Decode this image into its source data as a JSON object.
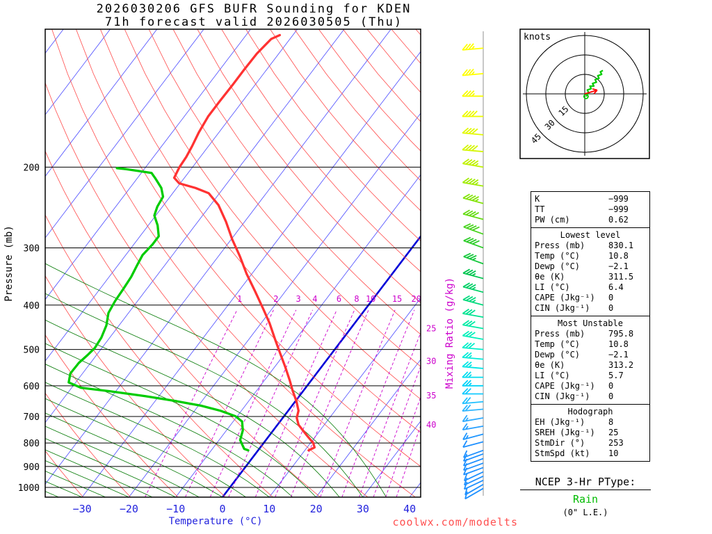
{
  "header": {
    "title": "2026030206 GFS BUFR Sounding for KDEN",
    "subtitle": "71h forecast valid 2026030505 (Thu)"
  },
  "watermark": {
    "text": "coolwx.com/modelts",
    "color": "#FF5050"
  },
  "ptype": {
    "title": "NCEP 3-Hr PType:",
    "value": "Rain",
    "value_color": "#00BB00",
    "liquid_equivalent": "(0\" L.E.)"
  },
  "stats": {
    "boxes": [
      {
        "title": "",
        "rows": [
          [
            "K",
            "−999"
          ],
          [
            "TT",
            "−999"
          ],
          [
            "PW (cm)",
            "0.62"
          ]
        ]
      },
      {
        "title": "Lowest level",
        "rows": [
          [
            "Press (mb)",
            "830.1"
          ],
          [
            "Temp (°C)",
            "10.8"
          ],
          [
            "Dewp (°C)",
            "−2.1"
          ],
          [
            "θe (K)",
            "311.5"
          ],
          [
            "LI (°C)",
            "6.4"
          ],
          [
            "CAPE (Jkg⁻¹)",
            "0"
          ],
          [
            "CIN (Jkg⁻¹)",
            "0"
          ]
        ]
      },
      {
        "title": "Most Unstable",
        "rows": [
          [
            "Press (mb)",
            "795.8"
          ],
          [
            "Temp (°C)",
            "10.8"
          ],
          [
            "Dewp (°C)",
            "−2.1"
          ],
          [
            "θe (K)",
            "313.2"
          ],
          [
            "LI (°C)",
            "5.7"
          ],
          [
            "CAPE (Jkg⁻¹)",
            "0"
          ],
          [
            "CIN (Jkg⁻¹)",
            "0"
          ]
        ]
      },
      {
        "title": "Hodograph",
        "rows": [
          [
            "EH (Jkg⁻¹)",
            "8"
          ],
          [
            "SREH (Jkg⁻¹)",
            "25"
          ],
          [
            "StmDir (°)",
            "253"
          ],
          [
            "StmSpd (kt)",
            "10"
          ]
        ]
      }
    ]
  },
  "chart_data": {
    "type": "skewt-log-p-sounding",
    "station": "KDEN",
    "pressure_axis": {
      "label": "Pressure (mb)",
      "ticks": [
        200,
        300,
        400,
        500,
        600,
        700,
        800,
        900,
        1000
      ],
      "range_mb": [
        100,
        1050
      ]
    },
    "temp_axis": {
      "label": "Temperature (°C)",
      "ticks": [
        -30,
        -20,
        -10,
        0,
        10,
        20,
        30,
        40
      ]
    },
    "mixing_ratio": {
      "label": "Mixing Ratio (g/kg)",
      "lines": [
        1,
        2,
        3,
        4,
        6,
        8,
        10,
        15,
        20,
        25,
        30,
        35,
        40
      ]
    },
    "colors": {
      "isotherm": "#4A4AFF",
      "zero_isotherm": "#0000D8",
      "dry_adiabat": "#FF4A4A",
      "moist_adiabat": "#007800",
      "mixing_ratio": "#CC00CC",
      "temperature": "#FF3232",
      "dewpoint": "#00CC00"
    },
    "temperature_profile": [
      [
        830,
        10.8
      ],
      [
        818,
        11.6
      ],
      [
        800,
        10.6
      ],
      [
        770,
        8.0
      ],
      [
        730,
        4.5
      ],
      [
        705,
        3.0
      ],
      [
        680,
        2.2
      ],
      [
        648,
        0.2
      ],
      [
        615,
        -2.3
      ],
      [
        584,
        -4.6
      ],
      [
        545,
        -7.8
      ],
      [
        509,
        -11.1
      ],
      [
        475,
        -14.4
      ],
      [
        438,
        -18.2
      ],
      [
        406,
        -22.1
      ],
      [
        373,
        -26.5
      ],
      [
        342,
        -31.1
      ],
      [
        313,
        -35.4
      ],
      [
        288,
        -39.7
      ],
      [
        263,
        -44.0
      ],
      [
        242,
        -48.3
      ],
      [
        228,
        -52.3
      ],
      [
        222,
        -56.0
      ],
      [
        217,
        -60.2
      ],
      [
        211,
        -62.2
      ],
      [
        200,
        -62.8
      ],
      [
        190,
        -63.0
      ],
      [
        180,
        -63.5
      ],
      [
        168,
        -64.3
      ],
      [
        155,
        -64.9
      ],
      [
        144,
        -64.9
      ],
      [
        132,
        -64.8
      ],
      [
        123,
        -64.8
      ],
      [
        113,
        -64.7
      ],
      [
        105,
        -64.0
      ],
      [
        103,
        -62.8
      ]
    ],
    "dewpoint_profile": [
      [
        830,
        -2.1
      ],
      [
        824,
        -3.2
      ],
      [
        788,
        -5.5
      ],
      [
        751,
        -6.5
      ],
      [
        718,
        -8.1
      ],
      [
        699,
        -10.4
      ],
      [
        680,
        -14.5
      ],
      [
        663,
        -19.5
      ],
      [
        648,
        -25.5
      ],
      [
        632,
        -32.9
      ],
      [
        617,
        -41.2
      ],
      [
        606,
        -48.0
      ],
      [
        590,
        -51.5
      ],
      [
        564,
        -52.6
      ],
      [
        535,
        -52.5
      ],
      [
        514,
        -51.9
      ],
      [
        496,
        -51.5
      ],
      [
        471,
        -51.8
      ],
      [
        443,
        -52.7
      ],
      [
        416,
        -54.3
      ],
      [
        392,
        -54.8
      ],
      [
        369,
        -55.0
      ],
      [
        347,
        -55.3
      ],
      [
        328,
        -55.9
      ],
      [
        311,
        -56.4
      ],
      [
        295,
        -56.0
      ],
      [
        283,
        -56.0
      ],
      [
        268,
        -58.0
      ],
      [
        255,
        -60.3
      ],
      [
        244,
        -61.1
      ],
      [
        232,
        -61.5
      ],
      [
        222,
        -63.3
      ],
      [
        212,
        -66.0
      ],
      [
        206,
        -67.8
      ],
      [
        204,
        -70.7
      ],
      [
        202,
        -73.9
      ],
      [
        201,
        -76.0
      ]
    ],
    "winds": [
      {
        "p": 1005,
        "dir": 240,
        "spd": 10,
        "color": "#1E90FF"
      },
      {
        "p": 985,
        "dir": 240,
        "spd": 10,
        "color": "#1E90FF"
      },
      {
        "p": 965,
        "dir": 245,
        "spd": 10,
        "color": "#1E90FF"
      },
      {
        "p": 945,
        "dir": 245,
        "spd": 10,
        "color": "#1E90FF"
      },
      {
        "p": 925,
        "dir": 245,
        "spd": 10,
        "color": "#1E90FF"
      },
      {
        "p": 905,
        "dir": 250,
        "spd": 10,
        "color": "#1E90FF"
      },
      {
        "p": 885,
        "dir": 250,
        "spd": 10,
        "color": "#1E90FF"
      },
      {
        "p": 865,
        "dir": 250,
        "spd": 10,
        "color": "#1E90FF"
      },
      {
        "p": 845,
        "dir": 250,
        "spd": 10,
        "color": "#1E90FF"
      },
      {
        "p": 830,
        "dir": 250,
        "spd": 10,
        "color": "#1E90FF"
      },
      {
        "p": 795,
        "dir": 255,
        "spd": 10,
        "color": "#1E90FF"
      },
      {
        "p": 765,
        "dir": 255,
        "spd": 15,
        "color": "#1E96FF"
      },
      {
        "p": 735,
        "dir": 260,
        "spd": 15,
        "color": "#28A0FF"
      },
      {
        "p": 705,
        "dir": 260,
        "spd": 15,
        "color": "#30ABFF"
      },
      {
        "p": 675,
        "dir": 265,
        "spd": 20,
        "color": "#2EB6FF"
      },
      {
        "p": 650,
        "dir": 265,
        "spd": 20,
        "color": "#20C0FF"
      },
      {
        "p": 625,
        "dir": 270,
        "spd": 20,
        "color": "#10CAFF"
      },
      {
        "p": 600,
        "dir": 270,
        "spd": 25,
        "color": "#00D4F8"
      },
      {
        "p": 575,
        "dir": 270,
        "spd": 25,
        "color": "#00DDEF"
      },
      {
        "p": 550,
        "dir": 275,
        "spd": 25,
        "color": "#00E5E5"
      },
      {
        "p": 525,
        "dir": 275,
        "spd": 25,
        "color": "#00EBD8"
      },
      {
        "p": 500,
        "dir": 275,
        "spd": 30,
        "color": "#00EFCA"
      },
      {
        "p": 475,
        "dir": 280,
        "spd": 30,
        "color": "#00F0BA"
      },
      {
        "p": 450,
        "dir": 280,
        "spd": 30,
        "color": "#00ECA6"
      },
      {
        "p": 425,
        "dir": 280,
        "spd": 30,
        "color": "#00E492"
      },
      {
        "p": 400,
        "dir": 285,
        "spd": 35,
        "color": "#00DA7C"
      },
      {
        "p": 375,
        "dir": 285,
        "spd": 35,
        "color": "#00D066"
      },
      {
        "p": 350,
        "dir": 285,
        "spd": 35,
        "color": "#00C650"
      },
      {
        "p": 325,
        "dir": 290,
        "spd": 35,
        "color": "#14C83C"
      },
      {
        "p": 300,
        "dir": 290,
        "spd": 40,
        "color": "#2CCC28"
      },
      {
        "p": 280,
        "dir": 290,
        "spd": 40,
        "color": "#48D41E"
      },
      {
        "p": 260,
        "dir": 285,
        "spd": 40,
        "color": "#66DC14"
      },
      {
        "p": 240,
        "dir": 285,
        "spd": 45,
        "color": "#84E40A"
      },
      {
        "p": 220,
        "dir": 280,
        "spd": 45,
        "color": "#A2EC04"
      },
      {
        "p": 200,
        "dir": 280,
        "spd": 45,
        "color": "#C0F200"
      },
      {
        "p": 185,
        "dir": 275,
        "spd": 40,
        "color": "#D4F600"
      },
      {
        "p": 170,
        "dir": 275,
        "spd": 40,
        "color": "#E2F900"
      },
      {
        "p": 155,
        "dir": 270,
        "spd": 40,
        "color": "#EEFB00"
      },
      {
        "p": 140,
        "dir": 270,
        "spd": 35,
        "color": "#F8FD00"
      },
      {
        "p": 125,
        "dir": 265,
        "spd": 35,
        "color": "#FFFF00"
      },
      {
        "p": 110,
        "dir": 265,
        "spd": 35,
        "color": "#FFFF00"
      }
    ],
    "hodograph": {
      "unit_label": "knots",
      "rings": [
        15,
        30,
        45
      ],
      "trace_uv": [
        [
          1,
          -2
        ],
        [
          3,
          1
        ],
        [
          2,
          3
        ],
        [
          5,
          4
        ],
        [
          4,
          6
        ],
        [
          7,
          6
        ],
        [
          6,
          8
        ],
        [
          9,
          9
        ],
        [
          8,
          11
        ],
        [
          11,
          12
        ],
        [
          10,
          14
        ],
        [
          13,
          15
        ],
        [
          12,
          17
        ],
        [
          14,
          18
        ]
      ],
      "storm_uv": [
        9.6,
        2.9
      ]
    }
  }
}
